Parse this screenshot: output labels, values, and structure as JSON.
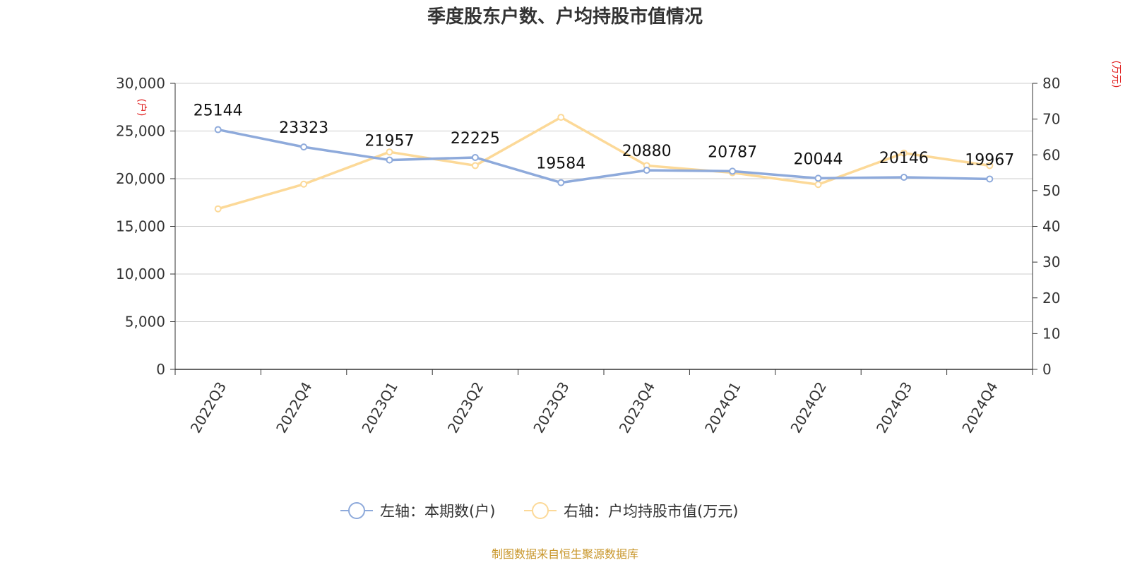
{
  "title": "季度股东户数、户均持股市值情况",
  "left_unit": "(户)",
  "right_unit": "(万元)",
  "source": "制图数据来自恒生聚源数据库",
  "colors": {
    "series1": "#8eaadb",
    "series2": "#fcd998",
    "grid": "#cccccc",
    "axis": "#333333"
  },
  "chart_data": {
    "type": "line",
    "categories": [
      "2022Q3",
      "2022Q4",
      "2023Q1",
      "2023Q2",
      "2023Q3",
      "2023Q4",
      "2024Q1",
      "2024Q2",
      "2024Q3",
      "2024Q4"
    ],
    "left_axis": {
      "min": 0,
      "max": 30000,
      "ticks": [
        "0",
        "5,000",
        "10,000",
        "15,000",
        "20,000",
        "25,000",
        "30,000"
      ]
    },
    "right_axis": {
      "min": 0,
      "max": 80,
      "ticks": [
        "0",
        "10",
        "20",
        "30",
        "40",
        "50",
        "60",
        "70",
        "80"
      ]
    },
    "series": [
      {
        "name": "左轴：本期数(户)",
        "axis": "left",
        "values": [
          25144,
          23323,
          21957,
          22225,
          19584,
          20880,
          20787,
          20044,
          20146,
          19967
        ],
        "labels": [
          "25144",
          "23323",
          "21957",
          "22225",
          "19584",
          "20880",
          "20787",
          "20044",
          "20146",
          "19967"
        ]
      },
      {
        "name": "右轴：户均持股市值(万元)",
        "axis": "right",
        "values": [
          44.9,
          51.8,
          60.8,
          57.0,
          70.5,
          57.0,
          55.0,
          51.7,
          60.5,
          57.0
        ]
      }
    ],
    "grid": true,
    "legend_position": "bottom"
  }
}
